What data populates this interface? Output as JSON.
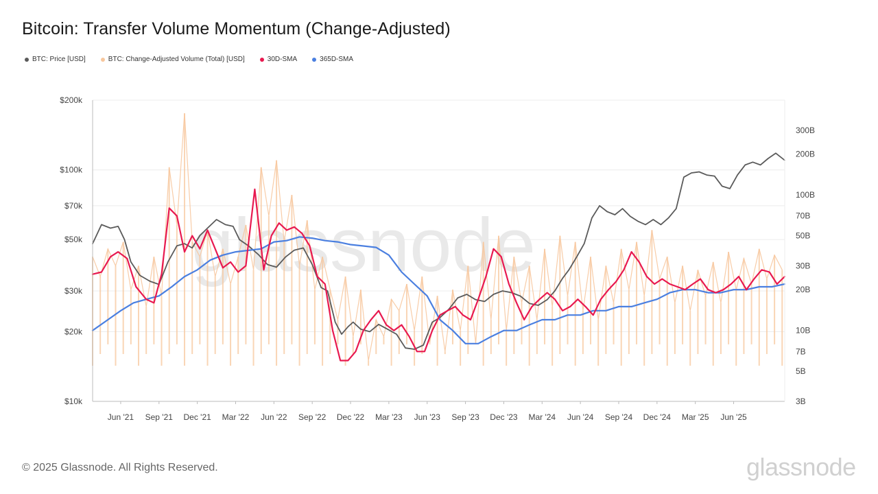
{
  "title": "Bitcoin: Transfer Volume Momentum (Change-Adjusted)",
  "legend": [
    {
      "label": "BTC: Price [USD]",
      "color": "#5a5a5a"
    },
    {
      "label": "BTC: Change-Adjusted Volume (Total) [USD]",
      "color": "#f7c79d"
    },
    {
      "label": "30D-SMA",
      "color": "#e8194f"
    },
    {
      "label": "365D-SMA",
      "color": "#4a7fe0"
    }
  ],
  "watermark": "glassnode",
  "footer": "© 2025 Glassnode. All Rights Reserved.",
  "brand": "glassnode",
  "chart_data": {
    "type": "line",
    "title": "Bitcoin: Transfer Volume Momentum (Change-Adjusted)",
    "x_tick_labels": [
      "Jun '21",
      "Sep '21",
      "Dec '21",
      "Mar '22",
      "Jun '22",
      "Sep '22",
      "Dec '22",
      "Mar '23",
      "Jun '23",
      "Sep '23",
      "Dec '23",
      "Mar '24",
      "Jun '24",
      "Sep '24",
      "Dec '24",
      "Mar '25",
      "Jun '25"
    ],
    "x_range_months": [
      -2.2,
      52.0
    ],
    "y_left": {
      "scale": "log",
      "range": [
        10000,
        200000
      ],
      "ticks": [
        200000,
        100000,
        70000,
        50000,
        30000,
        20000,
        10000
      ],
      "tick_labels": [
        "$200k",
        "$100k",
        "$70k",
        "$50k",
        "$30k",
        "$20k",
        "$10k"
      ]
    },
    "y_right": {
      "scale": "log",
      "range": [
        3,
        500
      ],
      "ticks": [
        300,
        200,
        100,
        70,
        50,
        30,
        20,
        10,
        7,
        5,
        3
      ],
      "tick_labels": [
        "300B",
        "200B",
        "100B",
        "70B",
        "50B",
        "30B",
        "20B",
        "10B",
        "7B",
        "5B",
        "3B"
      ]
    },
    "series": [
      {
        "name": "BTC: Price [USD]",
        "axis": "left",
        "x": [
          -2.2,
          -1.5,
          -0.8,
          -0.2,
          0.3,
          0.8,
          1.5,
          2.3,
          3.0,
          3.7,
          4.4,
          5.0,
          5.6,
          6.2,
          6.8,
          7.5,
          8.2,
          8.8,
          9.3,
          10.0,
          10.8,
          11.5,
          12.2,
          12.9,
          13.6,
          14.3,
          15.0,
          15.7,
          16.2,
          16.8,
          17.3,
          17.8,
          18.2,
          18.8,
          19.5,
          20.2,
          20.9,
          21.6,
          22.3,
          23.0,
          23.7,
          24.4,
          25.0,
          25.7,
          26.4,
          27.1,
          27.8,
          28.5,
          29.2,
          29.9,
          30.6,
          31.3,
          32.0,
          32.7,
          33.4,
          34.0,
          34.6,
          35.1,
          35.7,
          36.3,
          36.9,
          37.5,
          38.1,
          38.7,
          39.3,
          39.9,
          40.5,
          41.1,
          41.7,
          42.3,
          42.9,
          43.5,
          44.1,
          44.7,
          45.3,
          45.9,
          46.5,
          47.1,
          47.7,
          48.3,
          48.9,
          49.5,
          50.1,
          50.7,
          51.3,
          52.0
        ],
        "y": [
          48000,
          58000,
          56000,
          57000,
          50000,
          40000,
          35000,
          33000,
          32000,
          40000,
          47000,
          48000,
          46000,
          52000,
          56000,
          61000,
          58000,
          57000,
          50000,
          47000,
          43000,
          39000,
          38000,
          42000,
          45000,
          46000,
          39000,
          31000,
          30000,
          22000,
          19500,
          21000,
          22000,
          20500,
          20000,
          21500,
          20500,
          19500,
          17000,
          16800,
          17500,
          22000,
          23000,
          25000,
          28000,
          29000,
          27500,
          27000,
          29000,
          30000,
          29500,
          28500,
          26500,
          26000,
          27500,
          30000,
          34000,
          37000,
          42000,
          48000,
          62000,
          70000,
          66000,
          64000,
          68000,
          63000,
          60000,
          58000,
          61000,
          58000,
          62000,
          68000,
          93000,
          97000,
          98000,
          95000,
          94000,
          85000,
          83000,
          95000,
          105000,
          108000,
          105000,
          112000,
          118000,
          110000
        ]
      },
      {
        "name": "30D-SMA",
        "axis": "right",
        "x": [
          -2.2,
          -1.5,
          -0.8,
          -0.2,
          0.5,
          1.2,
          2.0,
          2.6,
          3.2,
          3.8,
          4.4,
          5.0,
          5.6,
          6.2,
          6.8,
          7.4,
          8.0,
          8.6,
          9.2,
          9.8,
          10.5,
          11.2,
          11.8,
          12.4,
          13.0,
          13.6,
          14.2,
          14.8,
          15.4,
          16.0,
          16.6,
          17.2,
          17.8,
          18.4,
          19.0,
          19.6,
          20.2,
          20.8,
          21.4,
          22.0,
          22.6,
          23.2,
          23.8,
          24.4,
          25.0,
          25.6,
          26.2,
          26.8,
          27.4,
          28.0,
          28.6,
          29.2,
          29.8,
          30.4,
          31.0,
          31.6,
          32.2,
          32.8,
          33.4,
          34.0,
          34.6,
          35.2,
          35.8,
          36.4,
          37.0,
          37.6,
          38.2,
          38.8,
          39.4,
          40.0,
          40.6,
          41.2,
          41.8,
          42.4,
          43.0,
          43.6,
          44.2,
          44.8,
          45.4,
          46.0,
          46.6,
          47.2,
          47.8,
          48.4,
          49.0,
          49.6,
          50.2,
          50.8,
          51.4,
          52.0
        ],
        "y": [
          26,
          27,
          35,
          38,
          34,
          21,
          17,
          16,
          26,
          80,
          70,
          38,
          50,
          40,
          55,
          40,
          29,
          32,
          27,
          30,
          110,
          28,
          50,
          62,
          55,
          58,
          52,
          42,
          25,
          22,
          10,
          6,
          6,
          7,
          10,
          12,
          14,
          11,
          10,
          11,
          9,
          7,
          7,
          10,
          13,
          14,
          15,
          13,
          12,
          17,
          25,
          40,
          35,
          22,
          16,
          12,
          15,
          17,
          19,
          17,
          14,
          15,
          17,
          15,
          13,
          17,
          20,
          23,
          28,
          38,
          32,
          25,
          22,
          24,
          22,
          21,
          20,
          22,
          24,
          20,
          19,
          20,
          22,
          25,
          20,
          24,
          28,
          27,
          22,
          25
        ]
      },
      {
        "name": "365D-SMA",
        "axis": "right",
        "x": [
          -2.2,
          -1.0,
          0.0,
          1.0,
          2.0,
          3.0,
          4.0,
          5.0,
          6.0,
          7.0,
          8.0,
          9.0,
          10.0,
          11.0,
          12.0,
          13.0,
          14.0,
          15.0,
          16.0,
          17.0,
          18.0,
          19.0,
          20.0,
          21.0,
          22.0,
          23.0,
          24.0,
          25.0,
          26.0,
          27.0,
          28.0,
          29.0,
          30.0,
          31.0,
          32.0,
          33.0,
          34.0,
          35.0,
          36.0,
          37.0,
          38.0,
          39.0,
          40.0,
          41.0,
          42.0,
          43.0,
          44.0,
          45.0,
          46.0,
          47.0,
          48.0,
          49.0,
          50.0,
          51.0,
          52.0
        ],
        "y": [
          10,
          12,
          14,
          16,
          17,
          18,
          21,
          25,
          28,
          33,
          36,
          38,
          39,
          40,
          45,
          46,
          49,
          48,
          46,
          45,
          43,
          42,
          41,
          36,
          27,
          22,
          18,
          12,
          10,
          8,
          8,
          9,
          10,
          10,
          11,
          12,
          12,
          13,
          13,
          14,
          14,
          15,
          15,
          16,
          17,
          19,
          20,
          20,
          19,
          19,
          20,
          20,
          21,
          21,
          22
        ]
      },
      {
        "name": "BTC: Change-Adjusted Volume (Total) [USD]",
        "axis": "right",
        "x": [
          -2.2,
          -1.6,
          -1.0,
          -0.4,
          0.2,
          0.8,
          1.4,
          2.0,
          2.6,
          3.2,
          3.8,
          4.4,
          5.0,
          5.6,
          6.2,
          6.8,
          7.4,
          8.0,
          8.6,
          9.2,
          9.8,
          10.4,
          11.0,
          11.6,
          12.2,
          12.8,
          13.4,
          14.0,
          14.6,
          15.2,
          15.8,
          16.4,
          17.0,
          17.6,
          18.2,
          18.8,
          19.4,
          20.0,
          20.6,
          21.2,
          21.8,
          22.4,
          23.0,
          23.6,
          24.2,
          24.8,
          25.4,
          26.0,
          26.6,
          27.2,
          27.8,
          28.4,
          29.0,
          29.6,
          30.2,
          30.8,
          31.4,
          32.0,
          32.6,
          33.2,
          33.8,
          34.4,
          35.0,
          35.6,
          36.2,
          36.8,
          37.4,
          38.0,
          38.6,
          39.2,
          39.8,
          40.4,
          41.0,
          41.6,
          42.2,
          42.8,
          43.4,
          44.0,
          44.6,
          45.2,
          45.8,
          46.4,
          47.0,
          47.6,
          48.2,
          48.8,
          49.4,
          50.0,
          50.6,
          51.2,
          51.8
        ],
        "y": [
          35,
          25,
          40,
          30,
          45,
          20,
          30,
          15,
          35,
          18,
          160,
          60,
          400,
          45,
          35,
          55,
          25,
          40,
          22,
          35,
          60,
          28,
          160,
          70,
          180,
          45,
          100,
          30,
          65,
          20,
          35,
          20,
          12,
          25,
          9,
          20,
          6,
          12,
          9,
          17,
          14,
          22,
          10,
          25,
          8,
          18,
          7,
          20,
          10,
          30,
          8,
          45,
          12,
          50,
          10,
          35,
          16,
          30,
          12,
          40,
          15,
          50,
          18,
          45,
          14,
          35,
          12,
          30,
          16,
          40,
          20,
          45,
          18,
          55,
          24,
          35,
          16,
          30,
          14,
          28,
          18,
          32,
          16,
          38,
          20,
          34,
          22,
          40,
          24,
          36,
          28
        ]
      }
    ]
  }
}
